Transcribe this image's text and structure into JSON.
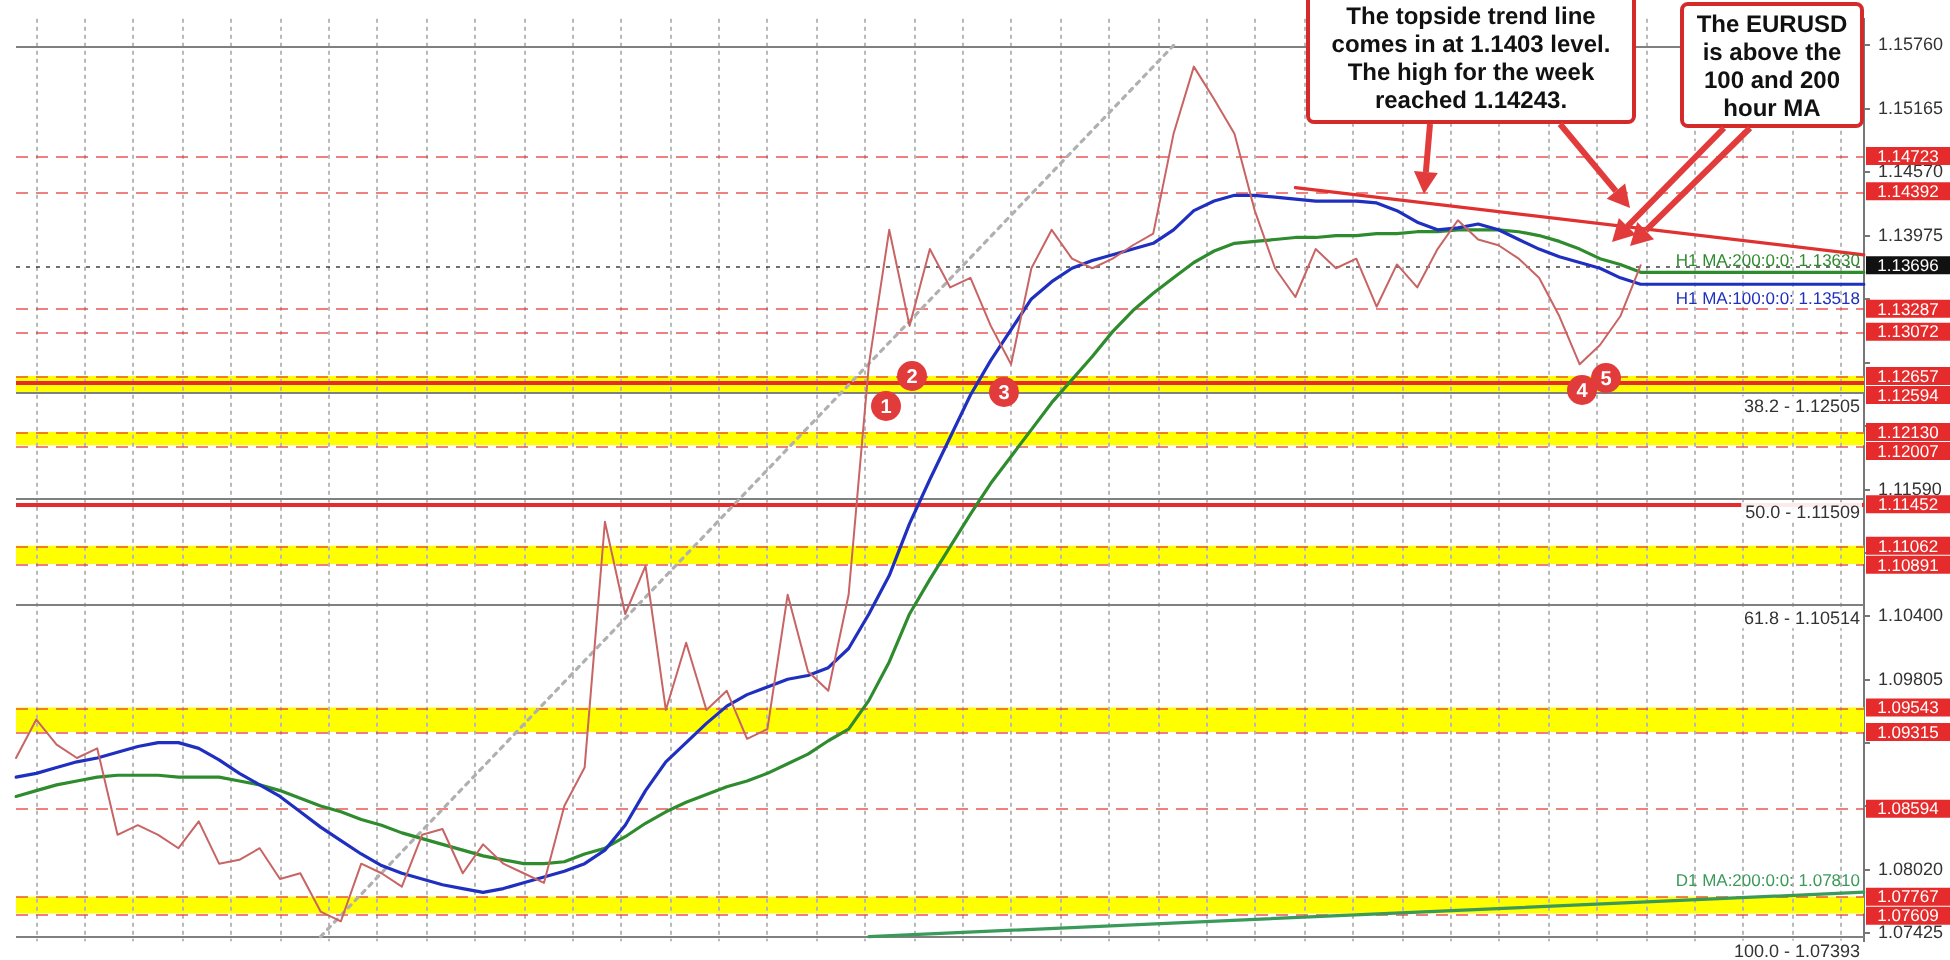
{
  "chart_data": {
    "type": "line",
    "categories": [
      null,
      null,
      null,
      null,
      null,
      null,
      null,
      null,
      null,
      null,
      null,
      null,
      null,
      null,
      null,
      null,
      null,
      null,
      null,
      null,
      null,
      null,
      null,
      null,
      null,
      null,
      null,
      null,
      null,
      null,
      null,
      null,
      null,
      null,
      null,
      null,
      null,
      null,
      null,
      null,
      null,
      null,
      null,
      null,
      null,
      null,
      null,
      null,
      null,
      null,
      null,
      null,
      null,
      null,
      null,
      null,
      null,
      null,
      null,
      null,
      null,
      null,
      null,
      null,
      null,
      null,
      null,
      null,
      null,
      null,
      null,
      null,
      null,
      null,
      null,
      null,
      null,
      null,
      null,
      null,
      null,
      null,
      null,
      null,
      null,
      null,
      null,
      null,
      null,
      null,
      null,
      null
    ],
    "series": [
      {
        "color": "#c86464",
        "values": [
          1.0907,
          1.09431,
          1.09196,
          1.0907,
          1.0916,
          1.08349,
          1.08439,
          1.08349,
          1.08223,
          1.08475,
          1.08078,
          1.08114,
          1.08223,
          1.07934,
          1.07988,
          1.07628,
          1.07537,
          1.08078,
          1.07988,
          1.07862,
          1.08349,
          1.08403,
          1.07988,
          1.08259,
          1.08078,
          1.07988,
          1.07898,
          1.08619,
          1.0898,
          1.11288,
          1.10422,
          1.10873,
          1.09521,
          1.10152,
          1.09521,
          1.09701,
          1.0925,
          1.09341,
          1.10603,
          1.09882,
          1.09701,
          1.10603,
          1.12766,
          1.14029,
          1.13127,
          1.13848,
          1.13488,
          1.13578,
          1.13127,
          1.12766,
          1.13668,
          1.14029,
          1.13758,
          1.13668,
          1.13758,
          1.13884,
          1.13993,
          1.1493,
          1.15561,
          1.15255,
          1.1493,
          1.14209,
          1.13668,
          1.13398,
          1.13848,
          1.13668,
          1.13758,
          1.13307,
          1.13704,
          1.13488,
          1.13848,
          1.14119,
          1.13938,
          1.13884,
          1.13758,
          1.13578,
          1.13217,
          1.12766,
          1.12947,
          1.13217,
          1.13696,
          null,
          null,
          null,
          null,
          null,
          null,
          null,
          null,
          null,
          null,
          null
        ]
      },
      {
        "name": "H1 MA:100:0:0: 1.13518",
        "color": "#1f2fbf",
        "values": [
          1.0889,
          1.08926,
          1.0898,
          1.09034,
          1.0907,
          1.09124,
          1.09178,
          1.09214,
          1.09214,
          1.0916,
          1.09052,
          1.08926,
          1.08818,
          1.08709,
          1.08565,
          1.08421,
          1.08295,
          1.08169,
          1.0806,
          1.07988,
          1.07934,
          1.0788,
          1.07844,
          1.07808,
          1.07844,
          1.07898,
          1.07952,
          1.08006,
          1.08078,
          1.08205,
          1.08439,
          1.08764,
          1.09034,
          1.09214,
          1.09395,
          1.09557,
          1.09665,
          1.09737,
          1.09809,
          1.09845,
          1.09918,
          1.10098,
          1.10422,
          1.10783,
          1.1127,
          1.11685,
          1.12081,
          1.12478,
          1.12803,
          1.13091,
          1.1338,
          1.13542,
          1.13668,
          1.1374,
          1.13794,
          1.13848,
          1.13902,
          1.14029,
          1.14209,
          1.14299,
          1.14353,
          1.14353,
          1.14335,
          1.14317,
          1.14299,
          1.14299,
          1.14299,
          1.14281,
          1.14209,
          1.14101,
          1.14029,
          1.14047,
          1.14083,
          1.14029,
          1.13938,
          1.13848,
          1.13776,
          1.13722,
          1.13668,
          1.13578,
          1.13518,
          1.13518,
          1.13518,
          1.13518,
          1.13518,
          1.13518,
          1.13518,
          1.13518,
          1.13518,
          1.13518,
          1.13518,
          1.13518
        ]
      },
      {
        "name": "H1 MA:200:0:0: 1.13630",
        "color": "#2e8b2e",
        "values": [
          1.08709,
          1.08764,
          1.08818,
          1.08854,
          1.0889,
          1.08908,
          1.08908,
          1.08908,
          1.0889,
          1.0889,
          1.0889,
          1.08854,
          1.08818,
          1.08764,
          1.08691,
          1.08619,
          1.08565,
          1.08493,
          1.08439,
          1.08367,
          1.08313,
          1.08259,
          1.08205,
          1.08151,
          1.08114,
          1.08078,
          1.08078,
          1.08096,
          1.08169,
          1.08223,
          1.08331,
          1.08457,
          1.08565,
          1.08655,
          1.08728,
          1.088,
          1.08854,
          1.08926,
          1.09016,
          1.09106,
          1.09232,
          1.09341,
          1.09611,
          1.09972,
          1.10422,
          1.10747,
          1.11054,
          1.1136,
          1.11649,
          1.11901,
          1.12153,
          1.12406,
          1.12622,
          1.12839,
          1.13073,
          1.13271,
          1.13434,
          1.13578,
          1.13722,
          1.1383,
          1.13902,
          1.1392,
          1.13938,
          1.13957,
          1.13957,
          1.13975,
          1.13975,
          1.13993,
          1.13993,
          1.14011,
          1.14011,
          1.14029,
          1.14029,
          1.14029,
          1.14011,
          1.13975,
          1.1392,
          1.13848,
          1.13758,
          1.13704,
          1.1363,
          1.1363,
          1.1363,
          1.1363,
          1.1363,
          1.1363,
          1.1363,
          1.1363,
          1.1363,
          1.1363,
          1.1363,
          1.1363
        ]
      },
      {
        "name": "D1 MA:200:0:0: 1.07810",
        "color": "#3a9a5a",
        "values": [
          null,
          null,
          null,
          null,
          null,
          null,
          null,
          null,
          null,
          null,
          null,
          null,
          null,
          null,
          null,
          null,
          null,
          null,
          null,
          null,
          null,
          null,
          null,
          null,
          null,
          null,
          null,
          null,
          null,
          null,
          null,
          null,
          null,
          null,
          null,
          null,
          null,
          null,
          null,
          null,
          null,
          null,
          1.07393,
          null,
          null,
          null,
          null,
          null,
          null,
          null,
          null,
          null,
          null,
          null,
          null,
          null,
          null,
          null,
          null,
          null,
          null,
          null,
          null,
          null,
          null,
          null,
          null,
          null,
          null,
          null,
          null,
          null,
          null,
          null,
          null,
          null,
          null,
          null,
          null,
          null,
          null,
          null,
          null,
          null,
          null,
          null,
          null,
          null,
          null,
          null,
          null,
          1.0781
        ]
      },
      {
        "color": "#e03030",
        "values": [
          null,
          null,
          null,
          null,
          null,
          null,
          null,
          null,
          null,
          null,
          null,
          null,
          null,
          null,
          null,
          null,
          null,
          null,
          null,
          null,
          null,
          null,
          null,
          null,
          null,
          null,
          null,
          null,
          null,
          null,
          null,
          null,
          null,
          null,
          null,
          null,
          null,
          null,
          null,
          null,
          null,
          null,
          null,
          null,
          null,
          null,
          null,
          null,
          null,
          null,
          null,
          null,
          null,
          null,
          null,
          null,
          null,
          null,
          null,
          null,
          null,
          null,
          null,
          1.14425,
          null,
          null,
          null,
          null,
          null,
          null,
          null,
          null,
          null,
          null,
          null,
          null,
          null,
          null,
          null,
          null,
          null,
          null,
          null,
          null,
          null,
          null,
          null,
          null,
          null,
          null,
          null,
          1.13794
        ]
      },
      {
        "color": "#b0b0b0",
        "line_style": "dotted",
        "values": [
          null,
          null,
          null,
          null,
          null,
          null,
          null,
          null,
          null,
          null,
          null,
          null,
          null,
          null,
          null,
          1.07393,
          null,
          null,
          null,
          null,
          null,
          null,
          null,
          null,
          null,
          null,
          null,
          null,
          null,
          null,
          null,
          null,
          null,
          null,
          null,
          null,
          null,
          null,
          null,
          null,
          null,
          null,
          null,
          null,
          null,
          null,
          null,
          null,
          null,
          null,
          null,
          null,
          null,
          null,
          null,
          null,
          null,
          1.1576,
          null,
          null,
          null,
          null,
          null,
          null,
          null,
          null,
          null,
          null,
          null,
          null,
          null,
          null,
          null,
          null,
          null,
          null,
          null,
          null,
          null,
          null,
          null,
          null,
          null,
          null,
          null,
          null,
          null,
          null,
          null,
          null,
          null,
          null
        ]
      }
    ],
    "ylim": [
      1.0735,
      1.1601
    ],
    "yticks": [
      {
        "value": 1.1576,
        "label": "1.15760"
      },
      {
        "value": 1.15165,
        "label": "1.15165"
      },
      {
        "value": 1.1457,
        "label": "1.14570"
      },
      {
        "value": 1.13975,
        "label": "1.13975"
      },
      {
        "value": 1.13375,
        "label": null
      },
      {
        "value": 1.1278,
        "label": null
      },
      {
        "value": 1.12185,
        "label": null
      },
      {
        "value": 1.1159,
        "label": "1.11590"
      },
      {
        "value": 1.10995,
        "label": null
      },
      {
        "value": 1.104,
        "label": "1.10400"
      },
      {
        "value": 1.09805,
        "label": "1.09805"
      },
      {
        "value": 1.0921,
        "label": null
      },
      {
        "value": 1.08615,
        "label": null
      },
      {
        "value": 1.0802,
        "label": "1.08020"
      },
      {
        "value": 1.07425,
        "label": "1.07425"
      }
    ],
    "tick_labels": "y",
    "grid": "x",
    "legend": false,
    "marker": "none",
    "line_style": "solid",
    "bands": [
      {
        "axis": "y",
        "from": 1.12505,
        "to": 1.12657,
        "color": "#ffff00"
      },
      {
        "axis": "y",
        "from": 1.12007,
        "to": 1.1213,
        "color": "#ffff00"
      },
      {
        "axis": "y",
        "from": 1.10891,
        "to": 1.11062,
        "color": "#ffff00"
      },
      {
        "axis": "y",
        "from": 1.09315,
        "to": 1.09543,
        "color": "#ffff00"
      },
      {
        "axis": "y",
        "from": 1.07609,
        "to": 1.07767,
        "color": "#ffff00"
      }
    ],
    "ref_lines": [
      {
        "axis": "y",
        "value": 1.14723,
        "label": "1.14723",
        "color": "#e52b2b",
        "line_style": "dashed"
      },
      {
        "axis": "y",
        "value": 1.14392,
        "label": "1.14392",
        "color": "#e52b2b",
        "line_style": "dashed"
      },
      {
        "axis": "y",
        "value": 1.13696,
        "label": "1.13696",
        "color": "#111111",
        "line_style": "dotted"
      },
      {
        "axis": "y",
        "value": 1.13287,
        "label": "1.13287",
        "color": "#e52b2b",
        "line_style": "dashed"
      },
      {
        "axis": "y",
        "value": 1.13072,
        "label": "1.13072",
        "color": "#e52b2b",
        "line_style": "dashed"
      },
      {
        "axis": "y",
        "value": 1.12657,
        "label": "1.12657",
        "color": "#e52b2b",
        "line_style": "dashed"
      },
      {
        "axis": "y",
        "value": 1.12594,
        "label": "1.12594",
        "color": "#e52b2b",
        "line_style": "solid"
      },
      {
        "axis": "y",
        "value": 1.1213,
        "label": "1.12130",
        "color": "#e52b2b",
        "line_style": "dashed"
      },
      {
        "axis": "y",
        "value": 1.12007,
        "label": "1.12007",
        "color": "#e52b2b",
        "line_style": "dashed"
      },
      {
        "axis": "y",
        "value": 1.11452,
        "label": "1.11452",
        "color": "#e52b2b",
        "line_style": "solid"
      },
      {
        "axis": "y",
        "value": 1.11062,
        "label": "1.11062",
        "color": "#e52b2b",
        "line_style": "dashed"
      },
      {
        "axis": "y",
        "value": 1.10891,
        "label": "1.10891",
        "color": "#e52b2b",
        "line_style": "dashed"
      },
      {
        "axis": "y",
        "value": 1.09543,
        "label": "1.09543",
        "color": "#e52b2b",
        "line_style": "dashed"
      },
      {
        "axis": "y",
        "value": 1.09315,
        "label": "1.09315",
        "color": "#e52b2b",
        "line_style": "dashed"
      },
      {
        "axis": "y",
        "value": 1.08594,
        "label": "1.08594",
        "color": "#e52b2b",
        "line_style": "dashed"
      },
      {
        "axis": "y",
        "value": 1.07767,
        "label": "1.07767",
        "color": "#e52b2b",
        "line_style": "dashed"
      },
      {
        "axis": "y",
        "value": 1.07609,
        "label": "1.07609",
        "color": "#e52b2b",
        "line_style": "dashed"
      },
      {
        "axis": "y",
        "value": 1.1576,
        "color": "#808080",
        "line_style": "solid"
      },
      {
        "axis": "y",
        "value": 1.12505,
        "color": "#808080",
        "line_style": "solid"
      },
      {
        "axis": "y",
        "value": 1.11509,
        "color": "#808080",
        "line_style": "solid"
      },
      {
        "axis": "y",
        "value": 1.10514,
        "color": "#808080",
        "line_style": "solid"
      },
      {
        "axis": "y",
        "value": 1.07393,
        "color": "#808080",
        "line_style": "solid"
      }
    ],
    "annotations": [
      "The topside trend line comes in at 1.1403 level. The high for the week reached 1.14243.",
      "The EURUSD is above the 100 and 200 hour MA",
      "1",
      "2",
      "3",
      "4",
      "5",
      {
        "text": "38.2 - 1.12505",
        "y": 1.12505
      },
      {
        "text": "50.0 - 1.11509",
        "y": 1.11509
      },
      {
        "text": "61.8 - 1.10514",
        "y": 1.10514
      },
      {
        "text": "100.0 - 1.07393",
        "y": 1.07393
      }
    ]
  }
}
